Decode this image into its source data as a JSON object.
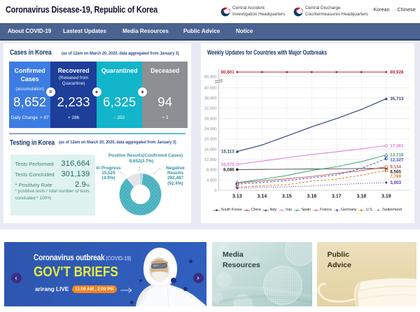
{
  "header": {
    "title": "Coronavirus Disease-19, Republic of Korea",
    "orgs": [
      {
        "line1": "Central Accident",
        "line2": "Investigation Headquarters"
      },
      {
        "line1": "Central Discharge",
        "line2": "Countermeasures Headquarters"
      }
    ],
    "lang_bullet": "·",
    "languages": [
      "Korean",
      "Chinese"
    ]
  },
  "nav": {
    "items": [
      "About COVID-19",
      "Lastest Updates",
      "Media Resources",
      "Public Advice",
      "Notice"
    ]
  },
  "cases": {
    "title": "Cases in Korea",
    "subtitle": "(as of 12am on March 20, 2020, data aggregated from January 3)",
    "cards": [
      {
        "title": "Confirmed Cases",
        "note": "(accumulation)",
        "value": "8,652",
        "change_label": "Daily Change",
        "change": "+ 87",
        "color": "#3d7ce2"
      },
      {
        "title": "Recovered",
        "note": "(Released from Quarantine)",
        "value": "2,233",
        "change": "+ 286",
        "color": "#1d3e99"
      },
      {
        "title": "Quarantined",
        "value": "6,325",
        "change": "- 202",
        "color": "#12b5c9"
      },
      {
        "title": "Deceased",
        "value": "94",
        "change": "+ 3",
        "color": "#8c8f93"
      }
    ],
    "operators": [
      "=",
      "+",
      "+"
    ]
  },
  "testing": {
    "title": "Testing in Korea",
    "subtitle": "(as of 12am on March 20, 2020, data aggregated from January 3)",
    "stats": [
      {
        "label": "Tests Performed",
        "value": "316,664",
        "unit": ""
      },
      {
        "label": "Tests Concluded",
        "value": "301,139",
        "unit": ""
      },
      {
        "label": "* Positivity Rate",
        "value": "2.9",
        "unit": "%"
      }
    ],
    "note": "* postitive tests / total number of tests concluded * 100%",
    "donut": {
      "labels": {
        "positive_line1": "Positive Results(Confirmed Cases)",
        "positive_line2": "8,652(2.7%)",
        "in_progress": "In Progress\n15,525\n(4.9%)",
        "negative": "Negative\nResults\n292,487\n(92.4%)"
      },
      "segments": [
        {
          "name": "Positive Results(Confirmed Cases)",
          "value": 8652,
          "pct": 2.7,
          "deg": [
            -3,
            7
          ],
          "color": "#b4d8e8",
          "hatch": false
        },
        {
          "name": "Negative Results",
          "value": 292487,
          "pct": 92.4,
          "deg": [
            7,
            320
          ],
          "color": "#48b0bf",
          "hatch": true,
          "hatch_color": "#68c3cd"
        },
        {
          "name": "In Progress",
          "value": 15525,
          "pct": 4.9,
          "deg": [
            320,
            357
          ],
          "color": "#e4e4e6",
          "hatch": false
        }
      ]
    }
  },
  "chart_data": {
    "type": "line",
    "title": "Weekly Updates for Countries with Major Outbreaks",
    "x_labels": [
      "3.13",
      "3.14",
      "3.15",
      "3.16",
      "3.17",
      "3.18",
      "3.19"
    ],
    "y_ticks": [
      "0",
      "4,000",
      "8,000",
      "12,000",
      "16,000",
      "20,000",
      "24,000",
      "28,000",
      "32,000",
      "36,000",
      "40,000"
    ],
    "y_break_tick": "80,000",
    "axis_break": true,
    "ylim": [
      0,
      40000
    ],
    "grid": true,
    "legend_position": "bottom",
    "xlabel": "",
    "ylabel": "",
    "series": [
      {
        "name": "South Korea",
        "color": "#4f4f4f",
        "marker": "circ",
        "marker_color": "#1f1f1f",
        "line": "solid",
        "values": [
          8086,
          8162,
          8236,
          8320,
          8413,
          8478,
          8565
        ],
        "label_start": "8,086",
        "label_end": "8,565",
        "label_color": "#2b2b2b"
      },
      {
        "name": "China",
        "color": "#b5292c",
        "marker": "sq",
        "line": "solid",
        "values": [
          80801,
          80824,
          80844,
          80860,
          80881,
          80894,
          80928
        ],
        "label_start": "80,801",
        "label_end": "80,928",
        "markers_all": true
      },
      {
        "name": "Italy",
        "color": "#31447b",
        "marker": "tri",
        "line": "solid",
        "width": 1.2,
        "values": [
          15113,
          17660,
          21157,
          24747,
          27980,
          31506,
          35713
        ],
        "label_start": "15,113",
        "label_end": "35,713"
      },
      {
        "name": "Iran",
        "color": "#df72d2",
        "marker": "circ-open",
        "line": "solid",
        "values": [
          10075,
          11364,
          12729,
          13938,
          14991,
          16169,
          17361
        ],
        "label_start": "10,075",
        "label_end": "17,361"
      },
      {
        "name": "Spain",
        "color": "#36a266",
        "marker": "tri-open",
        "line": "solid",
        "values": [
          2965,
          4231,
          5753,
          7753,
          9191,
          11178,
          13716
        ],
        "label_end": "13,716"
      },
      {
        "name": "France",
        "color": "#c25d57",
        "marker": "circ-open",
        "line": "solid",
        "values": [
          2860,
          3640,
          4469,
          5380,
          6573,
          7652,
          9134
        ],
        "label_end": "9,134"
      },
      {
        "name": "Germany",
        "color": "#3a4fc2",
        "marker": "circ-half",
        "line": "dash",
        "values": [
          2369,
          3062,
          3795,
          4838,
          6012,
          8568,
          12327
        ],
        "label_end": "12,327"
      },
      {
        "name": "U.S.",
        "color": "#e0721c",
        "marker": "sq-half",
        "line": "dash",
        "values": [
          1264,
          1678,
          2174,
          3536,
          4373,
          5894,
          7769
        ],
        "label_end": "7,769"
      },
      {
        "name": "Switzerland",
        "color": "#4f3a9e",
        "marker": "dot",
        "line": "dot",
        "values": [
          858,
          1125,
          1359,
          1688,
          2200,
          2650,
          3003
        ],
        "label_end": "3,003"
      }
    ]
  },
  "banners": {
    "gov": {
      "line1": "Coronavirus outbreak",
      "line1_suffix": "(COVID-19)",
      "line2": "GOV'T BRIEFS",
      "live_label": "arirang LIVE",
      "times": "11:00 AM ,  2:00 PM",
      "prev": "‹",
      "next": "›"
    },
    "media": {
      "line1": "Media",
      "line2": "Resources"
    },
    "advice": {
      "line1": "Public",
      "line2": "Advice"
    }
  }
}
